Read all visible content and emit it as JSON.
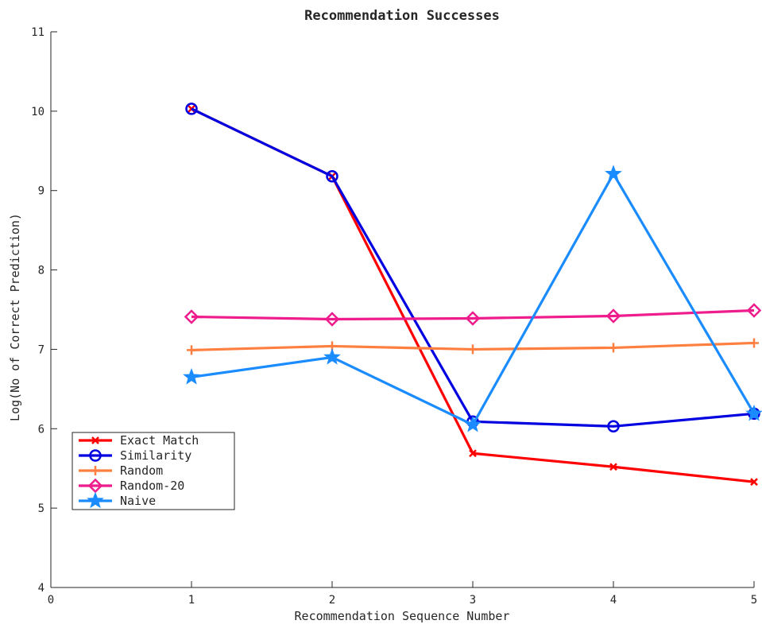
{
  "chart_data": {
    "type": "line",
    "title": "Recommendation Successes",
    "xlabel": "Recommendation Sequence Number",
    "ylabel": "Log(No of Correct Prediction)",
    "xlim": [
      0,
      5
    ],
    "ylim": [
      4,
      11
    ],
    "xticks": [
      "0",
      "1",
      "2",
      "3",
      "4",
      "5"
    ],
    "yticks": [
      "4",
      "5",
      "6",
      "7",
      "8",
      "9",
      "10",
      "11"
    ],
    "grid": false,
    "legend_position": "lower-left",
    "x": [
      1,
      2,
      3,
      4,
      5
    ],
    "series": [
      {
        "name": "Exact Match",
        "color": "#ff0000",
        "marker": "x",
        "values": [
          10.03,
          9.18,
          5.69,
          5.52,
          5.33
        ]
      },
      {
        "name": "Similarity",
        "color": "#0000e0",
        "marker": "circle",
        "values": [
          10.03,
          9.18,
          6.09,
          6.03,
          6.19
        ]
      },
      {
        "name": "Random",
        "color": "#ff7f40",
        "marker": "plus",
        "values": [
          6.99,
          7.04,
          7.0,
          7.02,
          7.08
        ]
      },
      {
        "name": "Random-20",
        "color": "#ee1c8c",
        "marker": "diamond",
        "values": [
          7.41,
          7.38,
          7.39,
          7.42,
          7.49
        ]
      },
      {
        "name": "Naive",
        "color": "#1a8cff",
        "marker": "star",
        "values": [
          6.65,
          6.9,
          6.05,
          9.21,
          6.19
        ]
      }
    ]
  }
}
